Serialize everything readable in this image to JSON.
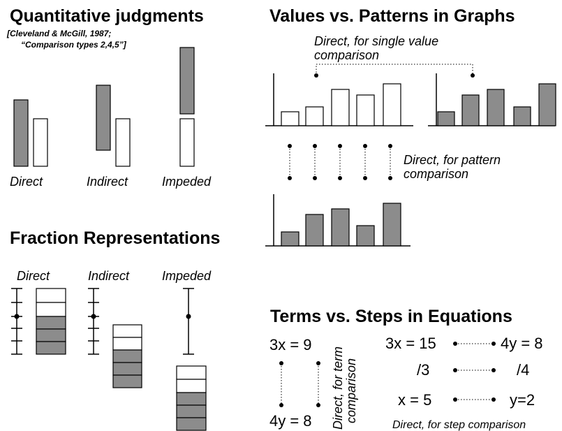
{
  "quantitative": {
    "title": "Quantitative judgments",
    "citation": [
      "[Cleveland & McGill, 1987;",
      "“Comparison types 2,4,5”]"
    ],
    "labels": [
      "Direct",
      "Indirect",
      "Impeded"
    ]
  },
  "patterns": {
    "title": "Values vs. Patterns in Graphs",
    "single_value_note": [
      "Direct, for single value",
      "comparison"
    ],
    "pattern_note": [
      "Direct, for pattern",
      "comparison"
    ]
  },
  "fractions": {
    "title": "Fraction Representations",
    "labels": [
      "Direct",
      "Indirect",
      "Impeded"
    ]
  },
  "equations": {
    "title": "Terms vs. Steps in Equations",
    "terms": [
      "3x = 9",
      "4y = 8"
    ],
    "term_note": [
      "Direct, for term",
      "comparison"
    ],
    "steps_left": [
      "3x = 15",
      "/3",
      "x = 5"
    ],
    "steps_right": [
      "4y = 8",
      "/4",
      "y=2"
    ],
    "step_note": "Direct, for step comparison"
  }
}
